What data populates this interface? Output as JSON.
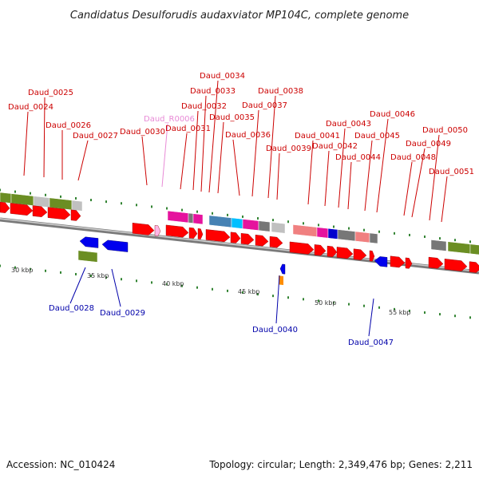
{
  "title": "Candidatus Desulforudis audaxviator MP104C, complete genome",
  "footer": {
    "accession": "Accession: NC_010424",
    "topology": "Topology: circular; Length: 2,349,476 bp; Genes: 2,211"
  },
  "colors": {
    "cds": "#ff0000",
    "cds_dark": "#cc0000",
    "rna": "#ffb6e6",
    "backbone": "#9a9a9a",
    "tick": "#006600",
    "label_forward": "#cc0000",
    "label_reverse": "#0000aa",
    "label_rna": "#e88ad6"
  },
  "scale_labels": [
    "30 kbp",
    "35 kbp",
    "40 kbp",
    "45 kbp",
    "50 kbp",
    "55 kbp"
  ],
  "forward_labels": [
    "Daud_0024",
    "Daud_0025",
    "Daud_0026",
    "Daud_0027",
    "Daud_0030",
    "Daud_R0006",
    "Daud_0031",
    "Daud_0032",
    "Daud_0033",
    "Daud_0034",
    "Daud_0035",
    "Daud_0036",
    "Daud_0037",
    "Daud_0038",
    "Daud_0039",
    "Daud_0041",
    "Daud_0042",
    "Daud_0043",
    "Daud_0044",
    "Daud_0045",
    "Daud_0046",
    "Daud_0048",
    "Daud_0049",
    "Daud_0050",
    "Daud_0051"
  ],
  "reverse_labels": [
    "Daud_0028",
    "Daud_0029",
    "Daud_0040",
    "Daud_0047"
  ]
}
